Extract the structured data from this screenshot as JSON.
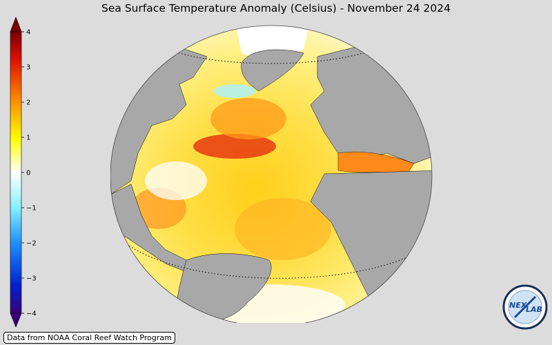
{
  "title": "Sea Surface Temperature Anomaly (Celsius) - November 24 2024",
  "colorbar": {
    "ticks": [
      "4",
      "3",
      "2",
      "1",
      "0",
      "−1",
      "−2",
      "−3",
      "−4"
    ],
    "range": [
      -4,
      4
    ],
    "extend": "both",
    "colors": [
      "#3a007a",
      "#0022cc",
      "#1e90ff",
      "#8af3ff",
      "#ffffff",
      "#ffff00",
      "#ff9000",
      "#e01000",
      "#7a0000"
    ]
  },
  "map": {
    "projection": "orthographic",
    "region": "North and South Atlantic Ocean",
    "land_color": "#a8a8a8",
    "ocean_anomaly_palette": [
      "#ffffff",
      "#fff27a",
      "#ffd200",
      "#ff9a1a",
      "#e03010",
      "#a00000"
    ]
  },
  "source": "Data from NOAA Coral Reef Watch Program",
  "logo": {
    "text": "NEX LAB",
    "icon": "nexlab-logo"
  }
}
